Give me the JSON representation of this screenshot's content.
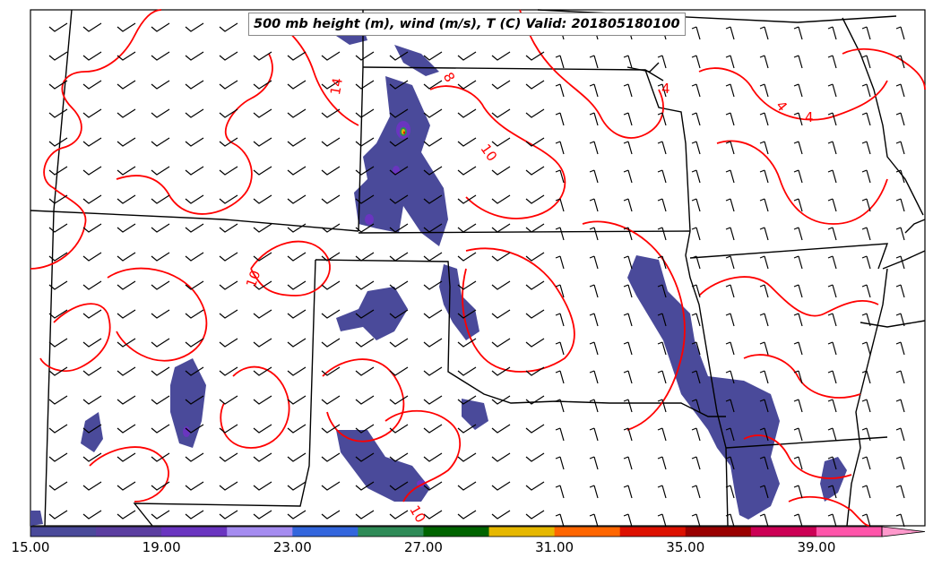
{
  "title": "500 mb height (m), wind (m/s), T (C) Valid: 201805180100",
  "contour_labels": [
    "14",
    "8",
    "10",
    "4",
    "4",
    "4",
    "10",
    "10"
  ],
  "colorbar": {
    "tick_labels": [
      "15.00",
      "19.00",
      "23.00",
      "27.00",
      "31.00",
      "35.00",
      "39.00"
    ],
    "colors": [
      "#4a4a9a",
      "#5b3ea0",
      "#6a35c0",
      "#a58cf0",
      "#3366dd",
      "#2e8b57",
      "#006400",
      "#e6b800",
      "#ff6600",
      "#dd1100",
      "#990000",
      "#cc0055",
      "#ff55aa",
      "#ff99cc"
    ]
  },
  "colors": {
    "contour": "#ff0000",
    "borders": "#000000",
    "shading": "#4a4a9a",
    "shading_core": "#6a35c0"
  }
}
